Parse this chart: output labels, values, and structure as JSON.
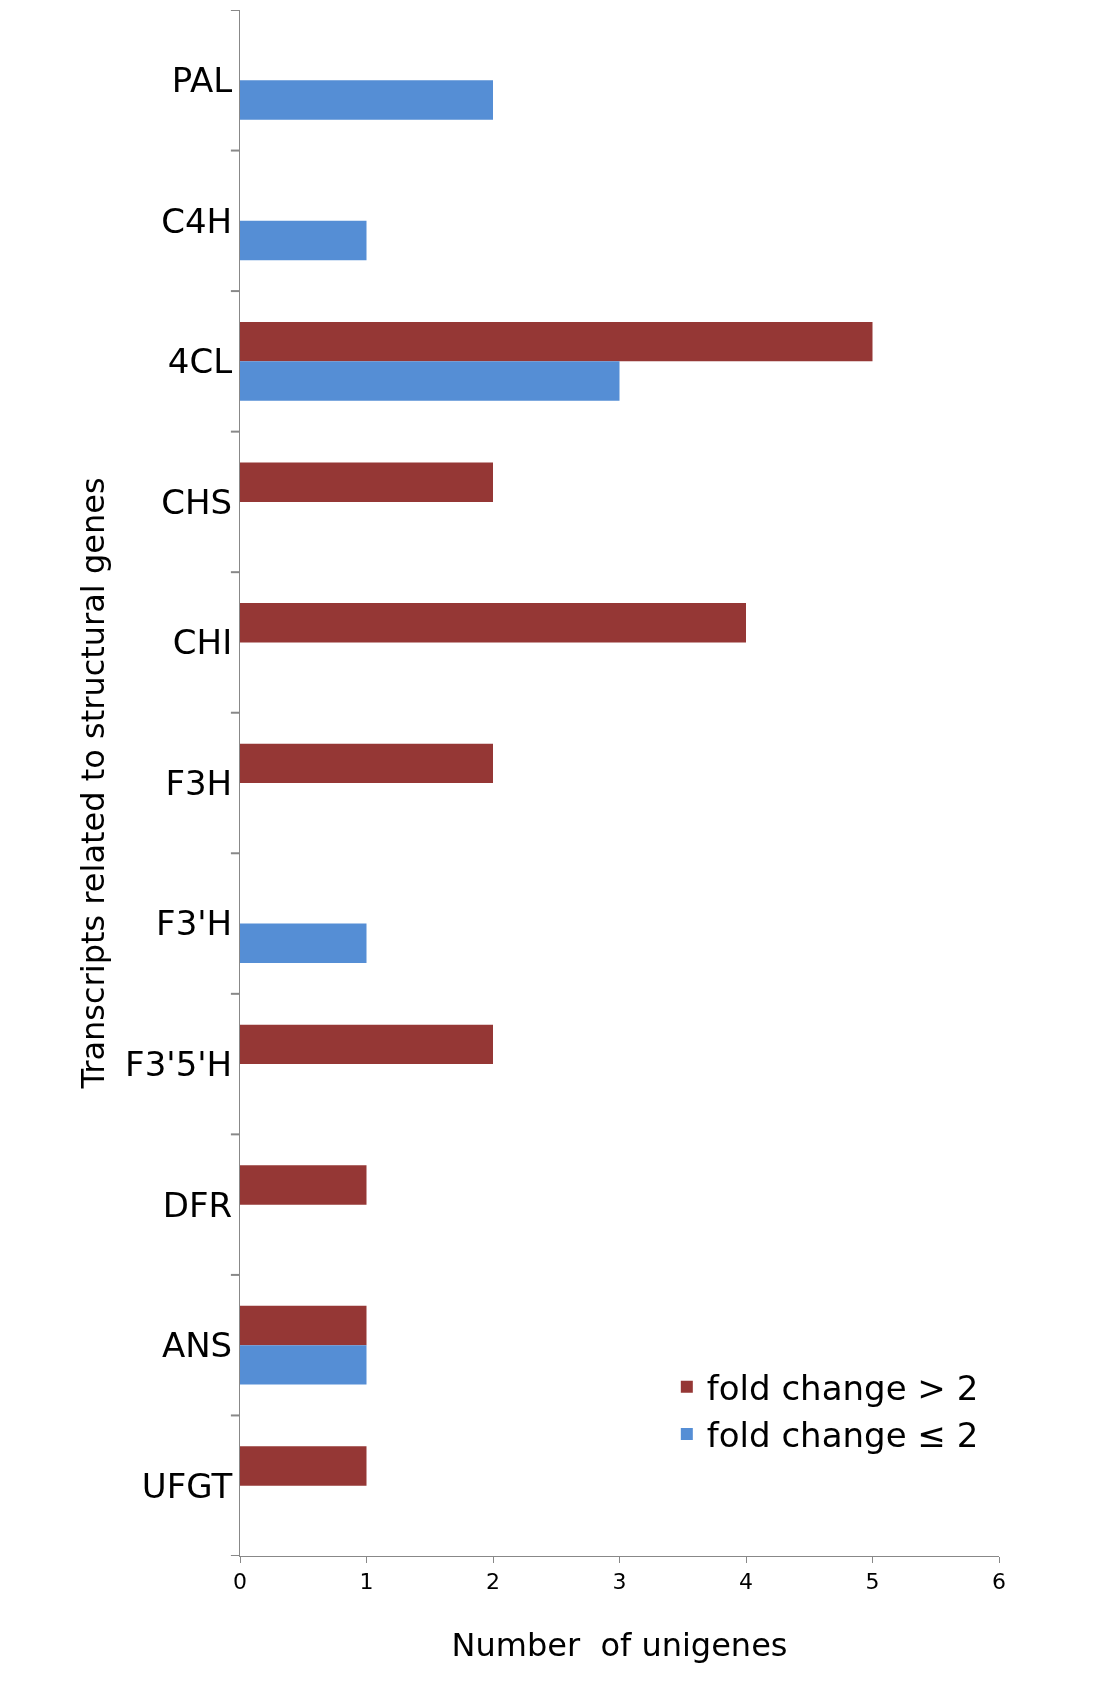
{
  "chart_data": {
    "type": "bar",
    "orientation": "horizontal",
    "xlabel": "Number  of unigenes",
    "ylabel": "Transcripts related to structural genes",
    "categories": [
      "PAL",
      "C4H",
      "4CL",
      "CHS",
      "CHI",
      "F3H",
      "F3'H",
      "F3'5'H",
      "DFR",
      "ANS",
      "UFGT"
    ],
    "series": [
      {
        "name": "fold change > 2",
        "color": "#953735",
        "values": [
          null,
          null,
          5,
          2,
          4,
          2,
          null,
          2,
          1,
          1,
          1
        ]
      },
      {
        "name": "fold change ≤ 2",
        "color": "#558ed5",
        "values": [
          2,
          1,
          3,
          null,
          null,
          null,
          1,
          null,
          null,
          1,
          null
        ]
      }
    ],
    "xlim": [
      0,
      6
    ],
    "xticks": [
      0,
      1,
      2,
      3,
      4,
      5,
      6
    ],
    "legend": "bottom right"
  }
}
